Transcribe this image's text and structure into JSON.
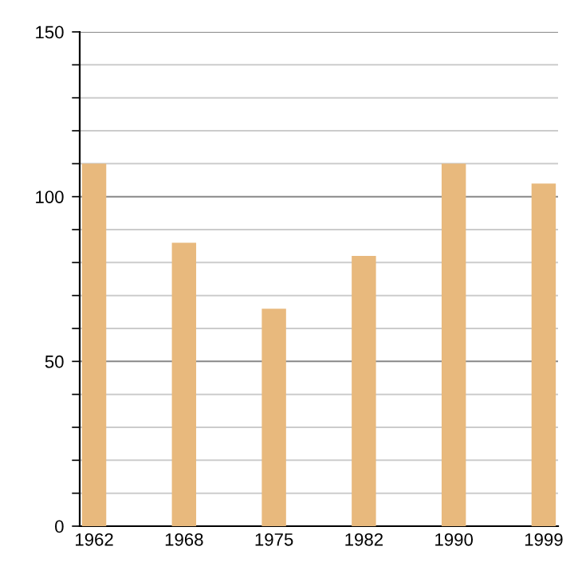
{
  "chart_data": {
    "type": "bar",
    "categories": [
      "1962",
      "1968",
      "1975",
      "1982",
      "1990",
      "1999"
    ],
    "values": [
      110,
      86,
      66,
      82,
      110,
      104
    ],
    "color": "#e8b97d",
    "ylim": [
      0,
      150
    ],
    "yticks": [
      0,
      {
        "value": 10,
        "label": null
      },
      {
        "value": 20,
        "label": null
      },
      {
        "value": 30,
        "label": null
      },
      {
        "value": 40,
        "label": null
      },
      50,
      {
        "value": 60,
        "label": null
      },
      {
        "value": 70,
        "label": null
      },
      {
        "value": 80,
        "label": null
      },
      {
        "value": 90,
        "label": null
      },
      100,
      {
        "value": 110,
        "label": null
      },
      {
        "value": 120,
        "label": null
      },
      {
        "value": 130,
        "label": null
      },
      {
        "value": 140,
        "label": null
      },
      150
    ],
    "grid": "y"
  }
}
